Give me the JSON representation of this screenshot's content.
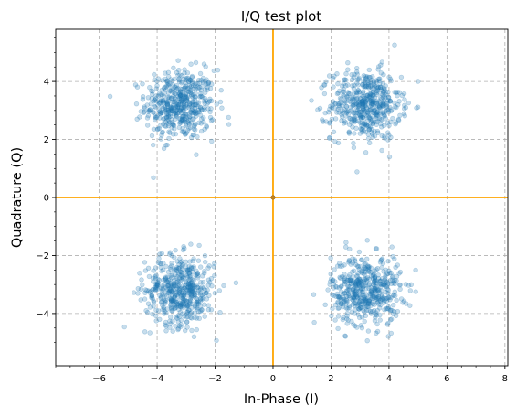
{
  "chart_data": {
    "type": "scatter",
    "title": "I/Q test plot",
    "xlabel": "In-Phase (I)",
    "ylabel": "Quadrature (Q)",
    "xlim": [
      -7.5,
      8.1
    ],
    "ylim": [
      -5.8,
      5.8
    ],
    "xticks": [
      -6,
      -4,
      -2,
      0,
      2,
      4,
      6,
      8
    ],
    "yticks": [
      -4,
      -2,
      0,
      2,
      4
    ],
    "grid": true,
    "grid_style": "dashed",
    "minor_ticks": true,
    "point_color": "#1f77b4",
    "point_alpha": 0.25,
    "reference_line_color": "#ffa500",
    "reference_lines": {
      "x": 0,
      "y": 0
    },
    "series": [
      {
        "cluster_centers": [
          [
            -3.2,
            3.2
          ],
          [
            3.2,
            3.2
          ],
          [
            -3.2,
            -3.2
          ],
          [
            3.2,
            -3.2
          ]
        ],
        "points_per_cluster": 500,
        "spread_std": 0.6
      }
    ]
  }
}
